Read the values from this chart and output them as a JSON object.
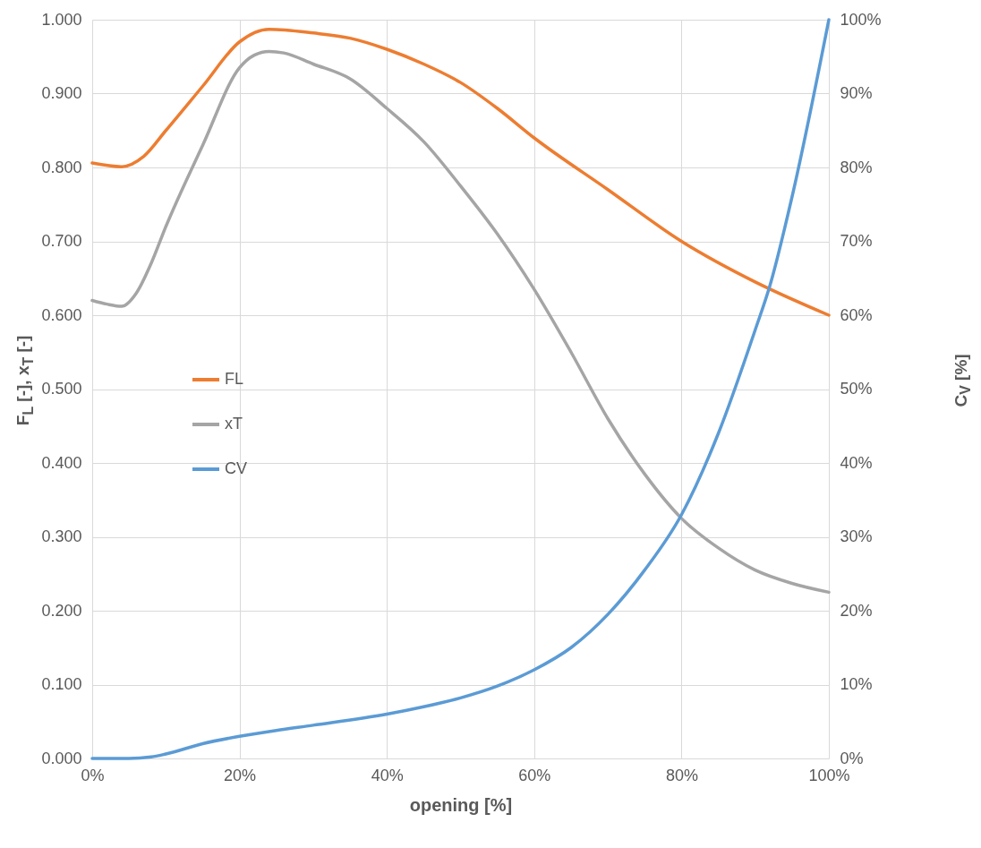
{
  "chart_data": {
    "type": "line",
    "xlabel": "opening [%]",
    "ylabel": "F$_{L}$ [-], x$_{T}$ [-]",
    "y2label": "C$_{V}$ [%]",
    "xlim": [
      0,
      100
    ],
    "xticks": [
      {
        "value": 0,
        "label": "0%"
      },
      {
        "value": 20,
        "label": "20%"
      },
      {
        "value": 40,
        "label": "40%"
      },
      {
        "value": 60,
        "label": "60%"
      },
      {
        "value": 80,
        "label": "80%"
      },
      {
        "value": 100,
        "label": "100%"
      }
    ],
    "ylim": [
      0,
      1
    ],
    "yticks": [
      {
        "value": 0,
        "label": "0.000"
      },
      {
        "value": 0.1,
        "label": "0.100"
      },
      {
        "value": 0.2,
        "label": "0.200"
      },
      {
        "value": 0.3,
        "label": "0.300"
      },
      {
        "value": 0.4,
        "label": "0.400"
      },
      {
        "value": 0.5,
        "label": "0.500"
      },
      {
        "value": 0.6,
        "label": "0.600"
      },
      {
        "value": 0.7,
        "label": "0.700"
      },
      {
        "value": 0.8,
        "label": "0.800"
      },
      {
        "value": 0.9,
        "label": "0.900"
      },
      {
        "value": 1,
        "label": "1.000"
      }
    ],
    "y2lim": [
      0,
      100
    ],
    "y2ticks": [
      {
        "value": 0,
        "label": "0%"
      },
      {
        "value": 10,
        "label": "10%"
      },
      {
        "value": 20,
        "label": "20%"
      },
      {
        "value": 30,
        "label": "30%"
      },
      {
        "value": 40,
        "label": "40%"
      },
      {
        "value": 50,
        "label": "50%"
      },
      {
        "value": 60,
        "label": "60%"
      },
      {
        "value": 70,
        "label": "70%"
      },
      {
        "value": 80,
        "label": "80%"
      },
      {
        "value": 90,
        "label": "90%"
      },
      {
        "value": 100,
        "label": "100%"
      }
    ],
    "grid": true,
    "legend": "left",
    "marker": "none",
    "line_style": "solid",
    "series": [
      {
        "name": "FL",
        "color": "#ed7d31",
        "x": [
          0,
          4,
          7,
          10,
          15,
          20,
          24,
          30,
          35,
          40,
          45,
          50,
          55,
          60,
          70,
          80,
          90,
          100
        ],
        "values": [
          0.806,
          0.801,
          0.815,
          0.85,
          0.91,
          0.97,
          0.987,
          0.982,
          0.975,
          0.96,
          0.94,
          0.915,
          0.88,
          0.84,
          0.77,
          0.7,
          0.645,
          0.6
        ]
      },
      {
        "name": "xT",
        "color": "#a5a5a5",
        "x": [
          0,
          2,
          4,
          6,
          8,
          10,
          15,
          20,
          22,
          24,
          26,
          30,
          35,
          40,
          45,
          50,
          55,
          60,
          65,
          70,
          75,
          80,
          85,
          90,
          95,
          100
        ],
        "values": [
          0.62,
          0.615,
          0.612,
          0.63,
          0.67,
          0.72,
          0.83,
          0.935,
          0.952,
          0.957,
          0.955,
          0.94,
          0.92,
          0.88,
          0.835,
          0.775,
          0.71,
          0.635,
          0.55,
          0.46,
          0.385,
          0.325,
          0.285,
          0.255,
          0.237,
          0.225
        ]
      },
      {
        "name": "CV",
        "color": "#5b9bd5",
        "axis": "y2",
        "x": [
          0,
          5,
          8,
          10,
          15,
          20,
          25,
          30,
          40,
          45,
          50,
          55,
          60,
          65,
          70,
          75,
          80,
          85,
          90,
          92,
          95,
          100
        ],
        "values": [
          0,
          0,
          0.2,
          0.6,
          2,
          3,
          3.8,
          4.5,
          6,
          7,
          8.2,
          9.8,
          12,
          15,
          19.5,
          25.5,
          33,
          44,
          58,
          64,
          76,
          100
        ]
      }
    ]
  }
}
